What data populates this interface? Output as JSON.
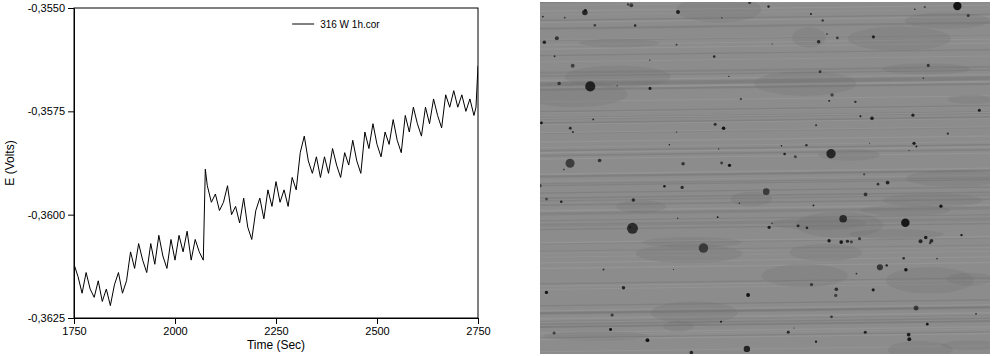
{
  "chart_data": {
    "type": "line",
    "x_label": "Time (Sec)",
    "y_label": "E (Volts)",
    "x": [
      1750,
      1760,
      1770,
      1780,
      1790,
      1800,
      1810,
      1820,
      1830,
      1840,
      1850,
      1860,
      1870,
      1880,
      1890,
      1900,
      1910,
      1920,
      1930,
      1940,
      1950,
      1960,
      1970,
      1980,
      1990,
      2000,
      2010,
      2020,
      2030,
      2040,
      2050,
      2060,
      2070,
      2075,
      2080,
      2090,
      2100,
      2110,
      2120,
      2130,
      2140,
      2150,
      2160,
      2170,
      2180,
      2190,
      2200,
      2210,
      2220,
      2230,
      2240,
      2250,
      2260,
      2270,
      2280,
      2290,
      2300,
      2310,
      2320,
      2330,
      2340,
      2350,
      2360,
      2370,
      2380,
      2390,
      2400,
      2410,
      2420,
      2430,
      2440,
      2450,
      2460,
      2470,
      2480,
      2490,
      2500,
      2510,
      2520,
      2530,
      2540,
      2550,
      2560,
      2570,
      2580,
      2590,
      2600,
      2610,
      2620,
      2630,
      2640,
      2650,
      2660,
      2670,
      2680,
      2690,
      2700,
      2710,
      2720,
      2730,
      2740,
      2745,
      2750
    ],
    "series": [
      {
        "name": "316 W 1h.cor",
        "color": "#000000",
        "line_style": "solid",
        "values": [
          -0.3612,
          -0.3615,
          -0.3619,
          -0.3614,
          -0.3618,
          -0.362,
          -0.3616,
          -0.3621,
          -0.3618,
          -0.3622,
          -0.3617,
          -0.3614,
          -0.3619,
          -0.3616,
          -0.3609,
          -0.3613,
          -0.3607,
          -0.3611,
          -0.3614,
          -0.3607,
          -0.3612,
          -0.3605,
          -0.361,
          -0.3613,
          -0.3606,
          -0.3611,
          -0.3605,
          -0.3609,
          -0.3604,
          -0.3611,
          -0.3606,
          -0.3609,
          -0.3611,
          -0.3589,
          -0.3593,
          -0.3597,
          -0.3595,
          -0.3599,
          -0.3597,
          -0.3593,
          -0.36,
          -0.3598,
          -0.3602,
          -0.3596,
          -0.3603,
          -0.3606,
          -0.3599,
          -0.3596,
          -0.3601,
          -0.3594,
          -0.3598,
          -0.3592,
          -0.3597,
          -0.3594,
          -0.3598,
          -0.3591,
          -0.3594,
          -0.3585,
          -0.3581,
          -0.3587,
          -0.359,
          -0.3586,
          -0.3591,
          -0.3586,
          -0.359,
          -0.3584,
          -0.3588,
          -0.3591,
          -0.3585,
          -0.3588,
          -0.3582,
          -0.3587,
          -0.359,
          -0.358,
          -0.3584,
          -0.3578,
          -0.3583,
          -0.3586,
          -0.358,
          -0.3583,
          -0.3577,
          -0.3582,
          -0.3585,
          -0.3576,
          -0.358,
          -0.3574,
          -0.3578,
          -0.3581,
          -0.3574,
          -0.3578,
          -0.3572,
          -0.3576,
          -0.3579,
          -0.3571,
          -0.3574,
          -0.357,
          -0.3574,
          -0.3571,
          -0.3575,
          -0.3572,
          -0.3576,
          -0.3574,
          -0.3564
        ]
      }
    ],
    "xlim": [
      1750,
      2750
    ],
    "xticks": [
      1750,
      2000,
      2250,
      2500,
      2750
    ],
    "ylim": [
      -0.3625,
      -0.355
    ],
    "yticks": [
      {
        "value": -0.3625,
        "label": "-0,3625"
      },
      {
        "value": -0.36,
        "label": "-0,3600"
      },
      {
        "value": -0.3575,
        "label": "-0,3575"
      },
      {
        "value": -0.355,
        "label": "-0,3550"
      }
    ],
    "legend": "top",
    "grid": false
  }
}
